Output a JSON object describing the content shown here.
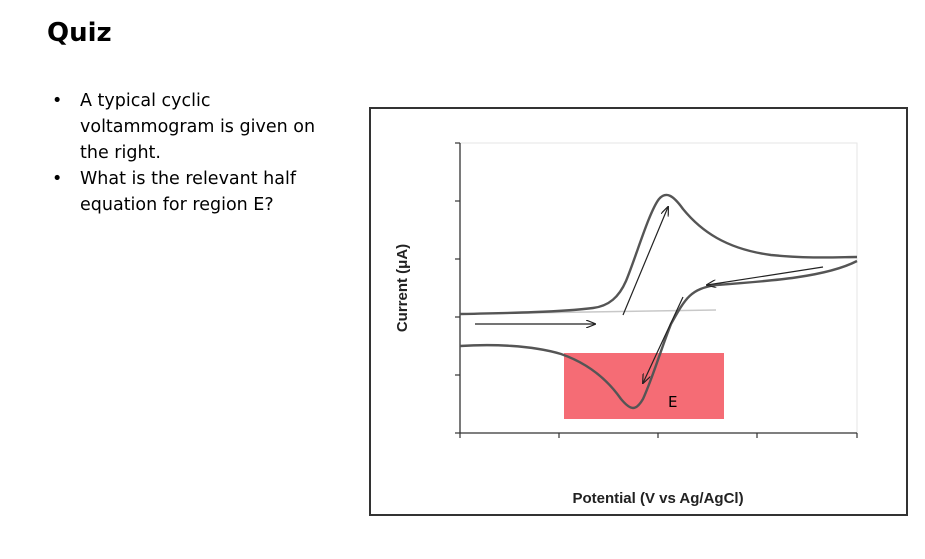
{
  "slide": {
    "title": "Quiz",
    "bullets": [
      "A typical cyclic voltammogram is given on the right.",
      "What is the relevant half equation for region E?"
    ]
  },
  "figure": {
    "ylabel": "Current (μA)",
    "xlabel": "Potential (V vs Ag/AgCl)",
    "region_label": "E",
    "colors": {
      "curve": "#555555",
      "highlight": "#f4646e",
      "axis": "#333333",
      "frame": "#333333"
    }
  }
}
